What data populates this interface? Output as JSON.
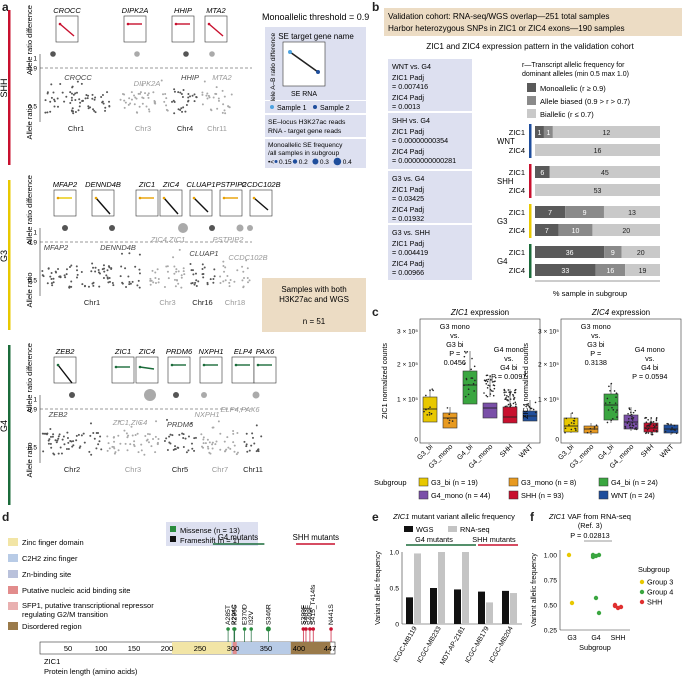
{
  "panel_letters": {
    "a": "a",
    "b": "b",
    "c": "c",
    "d": "d",
    "e": "e",
    "f": "f"
  },
  "colors": {
    "shh": "#c8102e",
    "g3": "#e8c800",
    "g4": "#1b6b3a",
    "wnt": "#1f4e9c",
    "box_lav": "#dde0f0",
    "box_tan": "#ecdcc4",
    "mono": "#5a5a5a",
    "bias": "#8a8a8a",
    "bial": "#c9c9c9"
  },
  "panel_a": {
    "threshold_title": "Monoallelic threshold = 0.9",
    "shh": {
      "label": "SHH",
      "genes": [
        "CROCC",
        "DIPK2A",
        "HHIP",
        "MTA2"
      ],
      "ylab_top": "Allele ratio difference",
      "ylab_main": "Allele ratio",
      "chr_labels": [
        "Chr1",
        "Chr3",
        "Chr4",
        "Chr11"
      ],
      "gene_labels": [
        "CROCC",
        "DIPK2A",
        "HHIP",
        "MTA2"
      ]
    },
    "g3": {
      "label": "G3",
      "genes": [
        "MFAP2",
        "DENND4B",
        "ZIC1",
        "ZIC4",
        "CLUAP1",
        "PSTPIP2",
        "CCDC102B"
      ],
      "ylab_top": "Allele ratio difference",
      "ylab_main": "Allele ratio",
      "chr_labels": [
        "Chr1",
        "Chr3",
        "Chr16",
        "Chr18"
      ],
      "gene_labels": [
        "MFAP2",
        "DENND4B",
        "ZIC4,ZIC1",
        "CLUAP1",
        "PSTPIP2",
        "CCDC102B"
      ]
    },
    "g4": {
      "label": "G4",
      "genes": [
        "ZEB2",
        "ZIC1",
        "ZIC4",
        "PRDM6",
        "NXPH1",
        "ELP4",
        "PAX6"
      ],
      "ylab_top": "Allele ratio difference",
      "ylab_main": "Allele ratio",
      "chr_labels": [
        "Chr2",
        "Chr3",
        "Chr5",
        "Chr7",
        "Chr11"
      ],
      "gene_labels": [
        "ZEB2",
        "ZIC1,ZIC4",
        "PRDM6",
        "NXPH1",
        "ELP4,PAX6"
      ]
    },
    "yticks": [
      "1",
      "0.9",
      "0.5"
    ],
    "legend": {
      "title": "SE target gene name",
      "ylab": "Allele A–B ratio difference",
      "xlab": "SE RNA",
      "sample1": "Sample 1",
      "sample2": "Sample 2",
      "desc": "SE–locus H3K27ac reads RNA - target gene reads",
      "freq_title": "Monoallelic SE frequency /all samples in subgroup",
      "sizes": [
        "0.15",
        "0.2",
        "0.3",
        "0.4"
      ],
      "size_prefix": "•<"
    },
    "samples_box": {
      "text": "Samples with both H3K27ac and WGS",
      "n": "n = 51"
    }
  },
  "panel_b": {
    "header1": "Validation cohort: RNA-seq/WGS overlap—251 total samples",
    "header2": "Harbor heterozygous SNPs in ZIC1 or ZIC4 exons—190 samples",
    "subtitle": "ZIC1 and ZIC4 expression pattern in the validation cohort",
    "legend_title": "r—Transcript allelic frequency for dominant alleles (min 0.5 max 1.0)",
    "legend": [
      "Monoallelic (r ≥ 0.9)",
      "Allele biased (0.9 > r > 0.7)",
      "Biallelic (r ≤ 0.7)"
    ],
    "stats": [
      {
        "title": "WNT vs. G4",
        "l1": "ZIC1 P",
        "v1": "= 0.007416",
        "l2": "ZIC4 P",
        "v2": "= 0.0013"
      },
      {
        "title": "SHH vs. G4",
        "l1": "ZIC1 P",
        "v1": "= 0.00000000354",
        "l2": "ZIC4 P",
        "v2": "= 0.0000000000281"
      },
      {
        "title": "G3 vs. G4",
        "l1": "ZIC1 P",
        "v1": "= 0.03425",
        "l2": "ZIC4 P",
        "v2": "= 0.01932"
      },
      {
        "title": "G3 vs. SHH",
        "l1": "ZIC1 P",
        "v1": "= 0.004419",
        "l2": "ZIC4 P",
        "v2": "= 0.00966"
      }
    ],
    "xlabel": "% sample in subgroup"
  },
  "panel_c": {
    "title1_gene": "ZIC1",
    "title1_rest": " expression",
    "title2_gene": "ZIC4",
    "title2_rest": " expression",
    "ylab1": "ZIC1 normalized counts",
    "ylab2": "ZIC4 normalized counts",
    "yt1": [
      "3 × 10⁵",
      "2 × 10⁵",
      "1 × 10⁵",
      "0"
    ],
    "yt2": [
      "3 × 10⁵",
      "2 × 10⁵",
      "1 × 10⁵",
      "0"
    ],
    "ann1a": [
      "G3 mono",
      "vs.",
      "G3 bi",
      "P =",
      "0.0456"
    ],
    "ann1b": [
      "G4 mono",
      "vs.",
      "G4 bi",
      "P = 0.0097"
    ],
    "ann2a": [
      "G3 mono",
      "vs.",
      "G3 bi",
      "P =",
      "0.3138"
    ],
    "ann2b": [
      "G4 mono",
      "vs.",
      "G4 bi",
      "P = 0.0594"
    ],
    "cats": [
      "G3_bi",
      "G3_mono",
      "G4_bi",
      "G4_mono",
      "SHH",
      "WNT"
    ],
    "legend_title": "Subgroup",
    "legend": [
      "G3_bi (n = 19)",
      "G3_mono (n = 8)",
      "G4_bi (n = 24)",
      "G4_mono (n = 44)",
      "SHH (n = 93)",
      "WNT (n = 24)"
    ]
  },
  "panel_d": {
    "legend": [
      "Zinc finger domain",
      "C2H2 zinc finger",
      "Zn-binding site",
      "Putative nucleic acid binding site",
      "SFP1, putative transcriptional repressor regulating G2/M transition",
      "Disordered region"
    ],
    "mut_box": [
      "Missense (n = 13)",
      "Frameshift (n = 1)"
    ],
    "g4_label": "G4 mutants",
    "shh_label": "SHH mutants",
    "g4_muts": [
      "A285T",
      "P294C",
      "K295S",
      "E370D",
      "I32V",
      "S346R"
    ],
    "shh_muts": [
      "S399F",
      "S403F",
      "S409F",
      "S415_T414fs",
      "N441S"
    ],
    "ticks": [
      "50",
      "100",
      "150",
      "200",
      "250",
      "300",
      "350",
      "400",
      "447"
    ],
    "caption1": "ZIC1",
    "caption2": "Protein length (amino acids)"
  },
  "panel_e": {
    "title_gene": "ZIC1",
    "title_rest": " mutant variant allelic frequency",
    "legend": [
      "WGS",
      "RNA-seq"
    ],
    "g4_label": "G4 mutants",
    "shh_label": "SHH mutants",
    "ylab": "Variant allelic frequency",
    "yt": [
      "1.0",
      "0.5",
      "0"
    ],
    "cats": [
      "ICGC-MB119",
      "ICGC-MB233",
      "MDT-AP-2181",
      "ICGC-MB179",
      "ICGC-MB204"
    ]
  },
  "panel_f": {
    "title_gene": "ZIC1",
    "title_rest": " VAF from RNA-seq",
    "ref": "(Ref. 3)",
    "p": "P = 0.02813",
    "ylab": "Variant allelic frequency",
    "yt": [
      "1.00",
      "0.75",
      "0.50",
      "0.25"
    ],
    "cats": [
      "G3",
      "G4",
      "SHH"
    ],
    "xlab": "Subgroup",
    "legend_title": "Subgroup",
    "legend": [
      "Group 3",
      "Group 4",
      "SHH"
    ]
  },
  "chart_data": [
    {
      "type": "bar",
      "title": "ZIC1 and ZIC4 expression pattern in the validation cohort",
      "xlabel": "% sample in subgroup",
      "categories": [
        "WNT ZIC1",
        "WNT ZIC4",
        "SHH ZIC1",
        "SHH ZIC4",
        "G3 ZIC1",
        "G3 ZIC4",
        "G4 ZIC1",
        "G4 ZIC4"
      ],
      "series": [
        {
          "name": "Monoallelic (r ≥ 0.9)",
          "values": [
            1,
            0,
            6,
            0,
            7,
            7,
            36,
            33
          ]
        },
        {
          "name": "Allele biased (0.9 > r > 0.7)",
          "values": [
            1,
            0,
            0,
            0,
            9,
            10,
            9,
            16
          ]
        },
        {
          "name": "Biallelic (r ≤ 0.7)",
          "values": [
            12,
            16,
            45,
            53,
            13,
            20,
            20,
            19
          ]
        }
      ]
    },
    {
      "type": "bar",
      "title": "ZIC1 mutant variant allelic frequency",
      "ylabel": "Variant allelic frequency",
      "ylim": [
        0,
        1
      ],
      "categories": [
        "ICGC-MB119",
        "ICGC-MB233",
        "MDT-AP-2181",
        "ICGC-MB179",
        "ICGC-MB204"
      ],
      "series": [
        {
          "name": "WGS",
          "values": [
            0.37,
            0.5,
            0.48,
            0.45,
            0.46
          ]
        },
        {
          "name": "RNA-seq",
          "values": [
            0.98,
            1.0,
            1.0,
            0.3,
            0.43
          ]
        }
      ]
    },
    {
      "type": "scatter",
      "title": "ZIC1 VAF from RNA-seq",
      "xlabel": "Subgroup",
      "ylabel": "Variant allelic frequency",
      "ylim": [
        0.25,
        1.05
      ],
      "series": [
        {
          "name": "Group 3",
          "x": [
            "G3",
            "G3"
          ],
          "values": [
            1.0,
            0.52
          ]
        },
        {
          "name": "Group 4",
          "x": [
            "G4",
            "G4",
            "G4",
            "G4",
            "G4",
            "G4"
          ],
          "values": [
            1.0,
            0.99,
            1.0,
            0.98,
            0.57,
            0.42
          ]
        },
        {
          "name": "SHH",
          "x": [
            "SHH",
            "SHH",
            "SHH",
            "SHH"
          ],
          "values": [
            0.49,
            0.47,
            0.48,
            0.5
          ]
        }
      ]
    }
  ]
}
